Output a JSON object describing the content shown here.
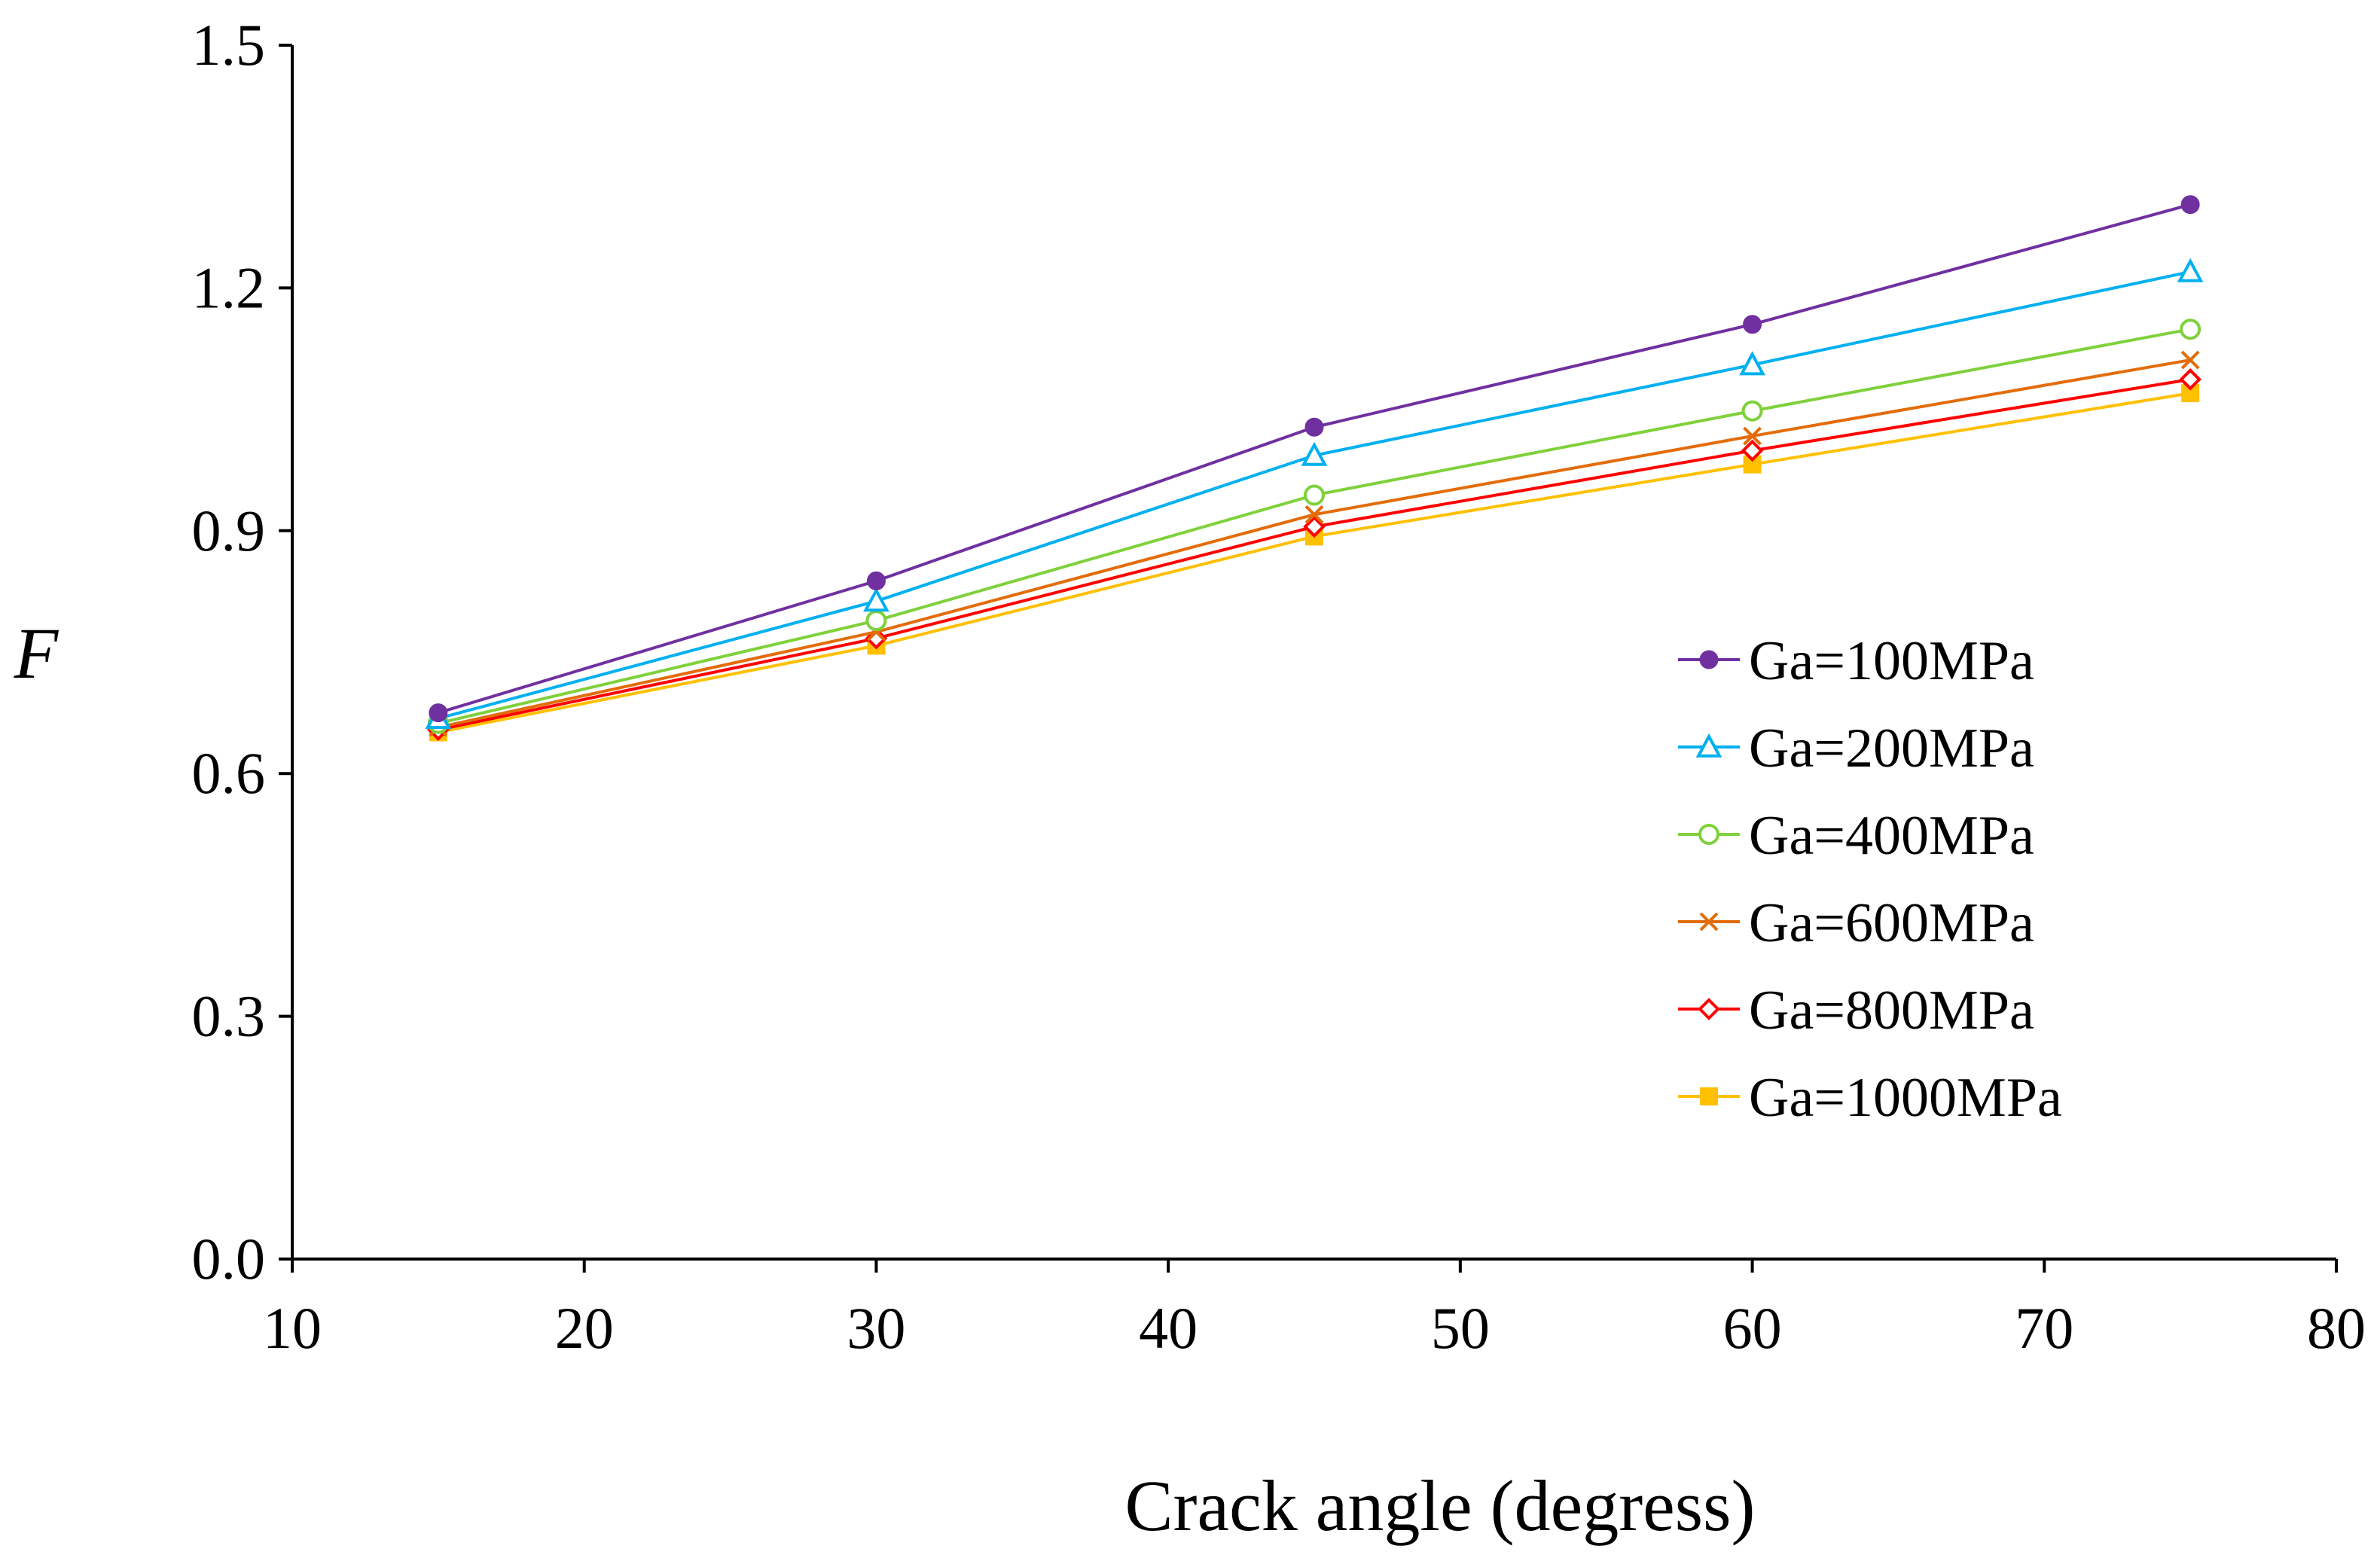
{
  "chart_data": {
    "type": "line",
    "title": "",
    "xlabel": "Crack angle (degress)",
    "ylabel": "F",
    "xlim": [
      10,
      80
    ],
    "ylim": [
      0.0,
      1.5
    ],
    "x_ticks": [
      "10",
      "20",
      "30",
      "40",
      "50",
      "60",
      "70",
      "80"
    ],
    "y_ticks": [
      "0.0",
      "0.3",
      "0.6",
      "0.9",
      "1.2",
      "1.5"
    ],
    "grid": false,
    "legend_position": "right",
    "x": [
      15,
      30,
      45,
      60,
      75
    ],
    "series": [
      {
        "name": "Ga=100MPa",
        "color": "#7030A0",
        "marker": "filled-circle",
        "values": [
          0.675,
          0.838,
          1.028,
          1.155,
          1.303
        ]
      },
      {
        "name": "Ga=200MPa",
        "color": "#00B0F0",
        "marker": "open-triangle",
        "values": [
          0.668,
          0.813,
          0.993,
          1.105,
          1.22
        ]
      },
      {
        "name": "Ga=400MPa",
        "color": "#7FD13B",
        "marker": "open-circle",
        "values": [
          0.662,
          0.789,
          0.944,
          1.048,
          1.149
        ]
      },
      {
        "name": "Ga=600MPa",
        "color": "#E36C09",
        "marker": "x",
        "values": [
          0.657,
          0.775,
          0.92,
          1.017,
          1.111
        ]
      },
      {
        "name": "Ga=800MPa",
        "color": "#FF0000",
        "marker": "open-diamond",
        "values": [
          0.654,
          0.767,
          0.905,
          0.999,
          1.087
        ]
      },
      {
        "name": "Ga=1000MPa",
        "color": "#FFC000",
        "marker": "filled-square",
        "values": [
          0.651,
          0.758,
          0.893,
          0.982,
          1.07
        ]
      }
    ]
  }
}
